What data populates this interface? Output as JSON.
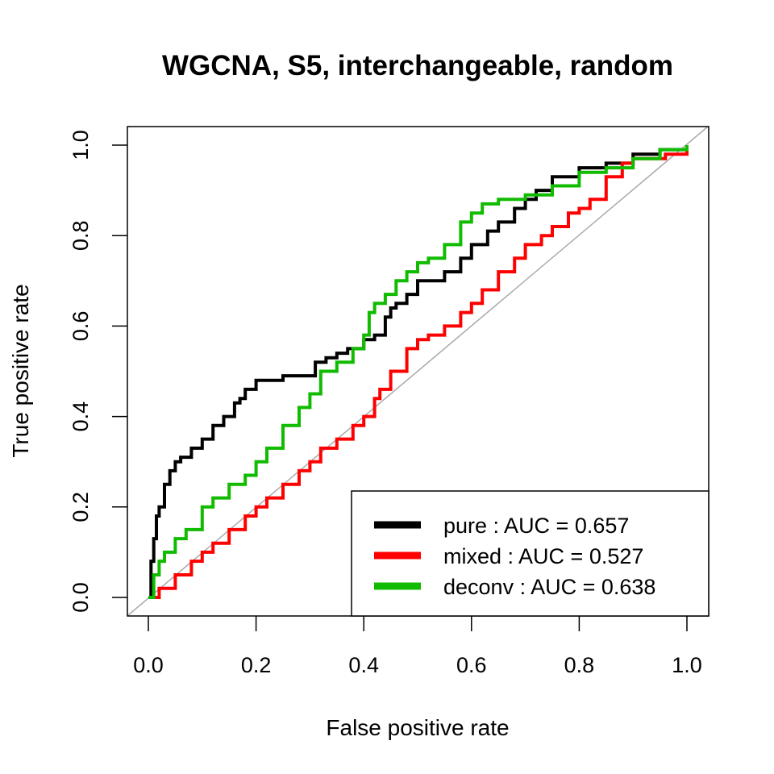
{
  "chart_data": {
    "type": "line",
    "title": "WGCNA, S5, interchangeable, random",
    "xlabel": "False positive rate",
    "ylabel": "True positive rate",
    "xlim": [
      0,
      1
    ],
    "ylim": [
      0,
      1
    ],
    "xticks": [
      "0.0",
      "0.2",
      "0.4",
      "0.6",
      "0.8",
      "1.0"
    ],
    "yticks": [
      "0.0",
      "0.2",
      "0.4",
      "0.6",
      "0.8",
      "1.0"
    ],
    "grid": false,
    "legend_position": "bottom-right",
    "diagonal": {
      "x": [
        0,
        1
      ],
      "y": [
        0,
        1
      ],
      "color": "#aaaaaa"
    },
    "series": [
      {
        "name": "pure : AUC = 0.657",
        "color": "#000000",
        "x": [
          0,
          0.005,
          0.01,
          0.015,
          0.02,
          0.03,
          0.04,
          0.05,
          0.06,
          0.08,
          0.1,
          0.12,
          0.14,
          0.16,
          0.17,
          0.18,
          0.2,
          0.22,
          0.25,
          0.28,
          0.3,
          0.31,
          0.33,
          0.35,
          0.37,
          0.4,
          0.42,
          0.44,
          0.45,
          0.46,
          0.48,
          0.5,
          0.52,
          0.55,
          0.58,
          0.6,
          0.63,
          0.65,
          0.68,
          0.7,
          0.72,
          0.75,
          0.8,
          0.85,
          0.9,
          0.95,
          1.0
        ],
        "y": [
          0,
          0.08,
          0.13,
          0.18,
          0.2,
          0.25,
          0.28,
          0.3,
          0.31,
          0.33,
          0.35,
          0.38,
          0.4,
          0.43,
          0.44,
          0.46,
          0.48,
          0.48,
          0.49,
          0.49,
          0.49,
          0.52,
          0.53,
          0.54,
          0.55,
          0.57,
          0.58,
          0.62,
          0.64,
          0.65,
          0.67,
          0.7,
          0.7,
          0.72,
          0.75,
          0.78,
          0.81,
          0.83,
          0.86,
          0.88,
          0.9,
          0.93,
          0.95,
          0.96,
          0.98,
          0.99,
          1.0
        ]
      },
      {
        "name": "mixed : AUC = 0.527",
        "color": "#ff0000",
        "x": [
          0,
          0.02,
          0.05,
          0.08,
          0.1,
          0.12,
          0.15,
          0.18,
          0.2,
          0.22,
          0.25,
          0.28,
          0.3,
          0.32,
          0.35,
          0.38,
          0.4,
          0.42,
          0.43,
          0.45,
          0.48,
          0.5,
          0.52,
          0.55,
          0.58,
          0.6,
          0.62,
          0.65,
          0.68,
          0.7,
          0.73,
          0.75,
          0.78,
          0.8,
          0.82,
          0.85,
          0.88,
          0.9,
          0.93,
          0.96,
          1.0
        ],
        "y": [
          0,
          0.02,
          0.05,
          0.08,
          0.1,
          0.12,
          0.15,
          0.18,
          0.2,
          0.22,
          0.25,
          0.28,
          0.3,
          0.33,
          0.35,
          0.38,
          0.4,
          0.44,
          0.46,
          0.5,
          0.55,
          0.57,
          0.58,
          0.6,
          0.63,
          0.65,
          0.68,
          0.72,
          0.75,
          0.78,
          0.8,
          0.82,
          0.85,
          0.86,
          0.88,
          0.93,
          0.96,
          0.97,
          0.97,
          0.98,
          1.0
        ]
      },
      {
        "name": "deconv : AUC = 0.638",
        "color": "#11bb00",
        "x": [
          0,
          0.01,
          0.02,
          0.03,
          0.05,
          0.07,
          0.1,
          0.12,
          0.15,
          0.18,
          0.2,
          0.22,
          0.25,
          0.28,
          0.3,
          0.32,
          0.35,
          0.38,
          0.4,
          0.41,
          0.42,
          0.44,
          0.46,
          0.48,
          0.5,
          0.52,
          0.55,
          0.58,
          0.6,
          0.62,
          0.65,
          0.7,
          0.75,
          0.8,
          0.85,
          0.9,
          0.95,
          1.0
        ],
        "y": [
          0,
          0.05,
          0.08,
          0.1,
          0.13,
          0.15,
          0.2,
          0.22,
          0.25,
          0.27,
          0.3,
          0.33,
          0.38,
          0.42,
          0.45,
          0.5,
          0.52,
          0.55,
          0.58,
          0.63,
          0.65,
          0.67,
          0.7,
          0.72,
          0.74,
          0.75,
          0.78,
          0.83,
          0.85,
          0.87,
          0.88,
          0.89,
          0.91,
          0.94,
          0.95,
          0.97,
          0.99,
          1.0
        ]
      }
    ]
  }
}
